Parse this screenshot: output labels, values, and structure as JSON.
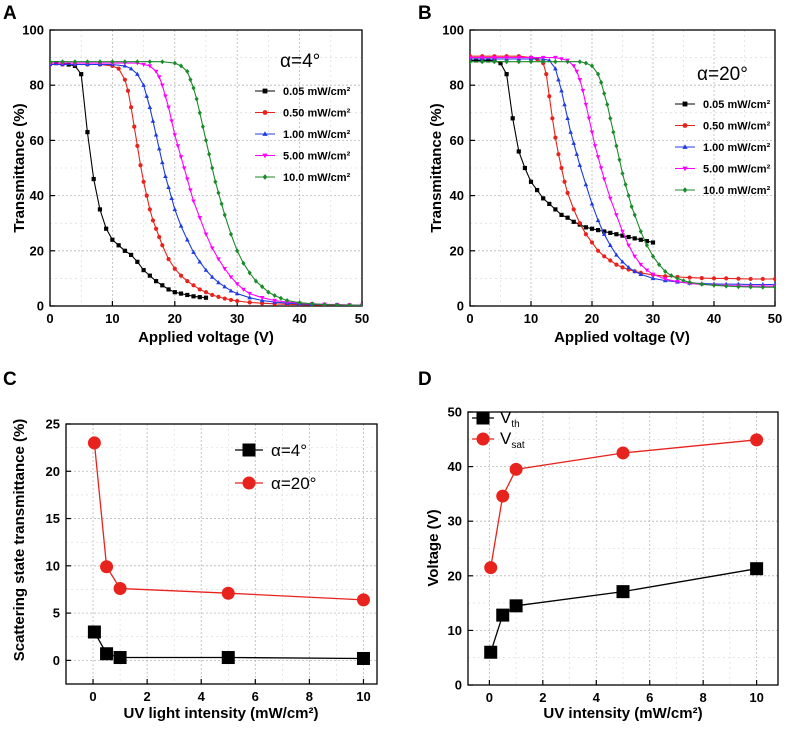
{
  "chart_data": [
    {
      "panel": "A",
      "type": "line",
      "annotation": "α=4°",
      "xlabel": "Applied voltage (V)",
      "ylabel": "Transmittance (%)",
      "xlim": [
        0,
        50
      ],
      "ylim": [
        0,
        100
      ],
      "xticks": [
        0,
        10,
        20,
        30,
        40,
        50
      ],
      "yticks": [
        0,
        20,
        40,
        60,
        80,
        100
      ],
      "grid": true,
      "legend_position": "right",
      "series": [
        {
          "name": "0.05 mW/cm²",
          "color": "#000000",
          "marker": "square",
          "x": [
            0,
            1,
            2,
            3,
            4,
            5,
            6,
            7,
            8,
            9,
            10,
            11,
            12,
            13,
            14,
            15,
            16,
            17,
            18,
            19,
            20,
            21,
            22,
            23,
            24,
            25
          ],
          "y": [
            88,
            88,
            88,
            87.5,
            87,
            84,
            63,
            46,
            35,
            28,
            24,
            22,
            20,
            18.5,
            16,
            13,
            11,
            9,
            7.5,
            6,
            5,
            4.5,
            4,
            3.5,
            3.2,
            3
          ]
        },
        {
          "name": "0.50 mW/cm²",
          "color": "#e8221c",
          "marker": "circle",
          "x": [
            0,
            2,
            4,
            6,
            8,
            10,
            11,
            12,
            12.5,
            13,
            13.5,
            14,
            14.5,
            15,
            15.5,
            16,
            16.5,
            17,
            17.5,
            18,
            19,
            20,
            21,
            22,
            23,
            24,
            25,
            26,
            27,
            28,
            29,
            30,
            32,
            34,
            36,
            38,
            40,
            42,
            44,
            46,
            48,
            50
          ],
          "y": [
            87.5,
            87.5,
            87.5,
            87.5,
            87.5,
            87,
            86,
            82,
            78,
            72,
            65,
            58,
            51,
            45,
            40,
            35,
            31,
            28,
            25,
            22,
            17,
            13.5,
            11,
            9,
            7.5,
            6,
            5,
            4,
            3.3,
            2.7,
            2.2,
            1.8,
            1.3,
            1,
            0.8,
            0.6,
            0.5,
            0.4,
            0.3,
            0.3,
            0.3,
            0.2
          ]
        },
        {
          "name": "1.00 mW/cm²",
          "color": "#1f3ce0",
          "marker": "triangle-up",
          "x": [
            0,
            2,
            4,
            6,
            8,
            10,
            12,
            13,
            14,
            15,
            15.5,
            16,
            16.5,
            17,
            17.5,
            18,
            18.5,
            19,
            19.5,
            20,
            21,
            22,
            23,
            24,
            25,
            26,
            27,
            28,
            29,
            30,
            32,
            34,
            36,
            38,
            40,
            42,
            44,
            46,
            48,
            50
          ],
          "y": [
            87.5,
            87.5,
            87.5,
            87.5,
            87.5,
            87.5,
            87,
            86,
            84,
            80,
            76,
            72,
            67,
            62,
            57,
            52,
            47,
            43,
            39,
            35,
            29,
            24,
            19.5,
            16,
            13,
            10.5,
            8.5,
            7,
            5.5,
            4.5,
            3,
            2,
            1.4,
            1,
            0.8,
            0.6,
            0.5,
            0.4,
            0.3,
            0.3
          ]
        },
        {
          "name": "5.00 mW/cm²",
          "color": "#ff00ff",
          "marker": "triangle-down",
          "x": [
            0,
            2,
            4,
            6,
            8,
            10,
            12,
            14,
            15,
            16,
            17,
            17.5,
            18,
            18.5,
            19,
            19.5,
            20,
            20.5,
            21,
            21.5,
            22,
            22.5,
            23,
            24,
            25,
            26,
            27,
            28,
            29,
            30,
            31,
            32,
            34,
            36,
            38,
            40,
            42,
            44,
            46,
            48,
            50
          ],
          "y": [
            88,
            88,
            88,
            88,
            88,
            88,
            88,
            88,
            87.5,
            87,
            85,
            83,
            80,
            76,
            72,
            67,
            62,
            58,
            54,
            50,
            46,
            42,
            38,
            32,
            26,
            21,
            17,
            13.5,
            10.5,
            8,
            6,
            4.5,
            3,
            2,
            1.4,
            1,
            0.8,
            0.6,
            0.5,
            0.4,
            0.3
          ]
        },
        {
          "name": "10.0 mW/cm²",
          "color": "#1b8a2a",
          "marker": "diamond",
          "x": [
            0,
            2,
            4,
            6,
            8,
            10,
            12,
            14,
            16,
            18,
            20,
            21,
            22,
            22.5,
            23,
            23.5,
            24,
            24.5,
            25,
            25.5,
            26,
            26.5,
            27,
            27.5,
            28,
            29,
            30,
            31,
            32,
            33,
            34,
            35,
            36,
            37,
            38,
            40,
            42,
            44,
            46,
            48,
            50
          ],
          "y": [
            88.5,
            88.5,
            88.5,
            88.5,
            88.5,
            88.5,
            88.5,
            88.5,
            88.5,
            88.5,
            88,
            87,
            85,
            82,
            79,
            75,
            70,
            65,
            60,
            55,
            50,
            45,
            41,
            37,
            33,
            26,
            20,
            15.5,
            12,
            9,
            7,
            5,
            3.8,
            2.8,
            2,
            1.2,
            0.8,
            0.5,
            0.4,
            0.3,
            0.3
          ]
        }
      ]
    },
    {
      "panel": "B",
      "type": "line",
      "annotation": "α=20°",
      "xlabel": "Applied voltage (V)",
      "ylabel": "Transmittance (%)",
      "xlim": [
        0,
        50
      ],
      "ylim": [
        0,
        100
      ],
      "xticks": [
        0,
        10,
        20,
        30,
        40,
        50
      ],
      "yticks": [
        0,
        20,
        40,
        60,
        80,
        100
      ],
      "grid": true,
      "legend_position": "right",
      "series": [
        {
          "name": "0.05 mW/cm²",
          "color": "#000000",
          "marker": "square",
          "x": [
            0,
            1,
            2,
            3,
            4,
            5,
            6,
            7,
            8,
            9,
            10,
            11,
            12,
            13,
            14,
            15,
            16,
            17,
            18,
            19,
            20,
            21,
            22,
            23,
            24,
            25,
            26,
            27,
            28,
            29,
            30
          ],
          "y": [
            89,
            89,
            89,
            89,
            89,
            88,
            84,
            68,
            56,
            50,
            45,
            42,
            39,
            37,
            35,
            33,
            32,
            30.5,
            29.5,
            28.5,
            28,
            27.5,
            27,
            26.5,
            26,
            25.5,
            25,
            24.5,
            24,
            23.5,
            23
          ]
        },
        {
          "name": "0.50 mW/cm²",
          "color": "#e8221c",
          "marker": "circle",
          "x": [
            0,
            2,
            4,
            6,
            8,
            10,
            11,
            12,
            12.5,
            13,
            13.5,
            14,
            14.5,
            15,
            15.5,
            16,
            17,
            18,
            19,
            20,
            21,
            22,
            23,
            24,
            25,
            26,
            27,
            28,
            30,
            32,
            34,
            36,
            38,
            40,
            42,
            44,
            46,
            48,
            50
          ],
          "y": [
            90.5,
            90.5,
            90.5,
            90.5,
            90.5,
            90,
            89.5,
            88,
            84,
            76,
            68,
            61,
            55,
            50,
            45,
            41,
            35,
            30,
            26,
            23,
            20,
            18,
            16.5,
            15,
            14,
            13.2,
            12.6,
            12,
            11.3,
            10.8,
            10.5,
            10.3,
            10.1,
            10,
            10,
            9.9,
            9.8,
            9.8,
            9.8
          ]
        },
        {
          "name": "1.00 mW/cm²",
          "color": "#1f3ce0",
          "marker": "triangle-up",
          "x": [
            0,
            2,
            4,
            6,
            8,
            10,
            12,
            13,
            14,
            14.5,
            15,
            15.5,
            16,
            16.5,
            17,
            17.5,
            18,
            19,
            20,
            21,
            22,
            23,
            24,
            25,
            26,
            27,
            28,
            30,
            32,
            34,
            36,
            38,
            40,
            42,
            44,
            46,
            48,
            50
          ],
          "y": [
            89.5,
            89.5,
            89.5,
            89.5,
            89.5,
            89.5,
            89.5,
            89,
            86,
            82,
            78,
            73,
            68,
            63,
            59,
            55,
            51,
            44,
            37,
            31,
            26,
            22,
            18.5,
            16,
            14,
            12.5,
            11.5,
            10,
            9.2,
            8.7,
            8.3,
            8.1,
            8,
            7.9,
            7.9,
            7.8,
            7.8,
            7.8
          ]
        },
        {
          "name": "5.00 mW/cm²",
          "color": "#ff00ff",
          "marker": "triangle-down",
          "x": [
            0,
            2,
            4,
            6,
            8,
            10,
            12,
            14,
            15,
            16,
            17,
            17.5,
            18,
            18.5,
            19,
            19.5,
            20,
            20.5,
            21,
            21.5,
            22,
            23,
            24,
            25,
            26,
            27,
            28,
            29,
            30,
            32,
            34,
            36,
            38,
            40,
            42,
            44,
            46,
            48,
            50
          ],
          "y": [
            90,
            90,
            90,
            90,
            90,
            90,
            90,
            90,
            89.5,
            89,
            87,
            85,
            82,
            78,
            73,
            68,
            63,
            58,
            54,
            50,
            46,
            39,
            33,
            27,
            22,
            18,
            15,
            13,
            11.5,
            9.8,
            8.8,
            8.2,
            7.8,
            7.6,
            7.4,
            7.3,
            7.2,
            7.2,
            7.2
          ]
        },
        {
          "name": "10.0 mW/cm²",
          "color": "#1b8a2a",
          "marker": "diamond",
          "x": [
            0,
            2,
            4,
            6,
            8,
            10,
            12,
            14,
            16,
            18,
            19,
            20,
            21,
            21.5,
            22,
            22.5,
            23,
            23.5,
            24,
            24.5,
            25,
            25.5,
            26,
            26.5,
            27,
            28,
            29,
            30,
            31,
            32,
            33,
            34,
            35,
            36,
            38,
            40,
            42,
            44,
            46,
            48,
            50
          ],
          "y": [
            88.5,
            88.5,
            88.5,
            88.5,
            88.5,
            88.5,
            88.5,
            88.5,
            88.5,
            88.5,
            88,
            87,
            84,
            81,
            77,
            73,
            68,
            63,
            58,
            53,
            48,
            44,
            40,
            36,
            33,
            27,
            22,
            18,
            15,
            12.5,
            11,
            10,
            9.2,
            8.6,
            7.9,
            7.5,
            7.2,
            7,
            6.9,
            6.8,
            6.8
          ]
        }
      ]
    },
    {
      "panel": "C",
      "type": "line",
      "xlabel": "UV light intensity (mW/cm²)",
      "ylabel": "Scattering state transmittance (%)",
      "xlim": [
        -1,
        10.5
      ],
      "ylim": [
        -2.5,
        25
      ],
      "xticks": [
        0,
        2,
        4,
        6,
        8,
        10
      ],
      "yticks": [
        0,
        5,
        10,
        15,
        20,
        25
      ],
      "grid": true,
      "legend_position": "top-right",
      "series": [
        {
          "name": "α=4°",
          "color": "#000000",
          "marker": "square",
          "x": [
            0.05,
            0.5,
            1,
            5,
            10
          ],
          "y": [
            3,
            0.7,
            0.3,
            0.3,
            0.2
          ]
        },
        {
          "name": "α=20°",
          "color": "#e8221c",
          "marker": "circle",
          "x": [
            0.05,
            0.5,
            1,
            5,
            10
          ],
          "y": [
            23,
            9.9,
            7.6,
            7.1,
            6.4
          ]
        }
      ]
    },
    {
      "panel": "D",
      "type": "line",
      "xlabel": "UV intensity (mW/cm²)",
      "ylabel": "Voltage (V)",
      "xlim": [
        -0.8,
        10.8
      ],
      "ylim": [
        0,
        50
      ],
      "xticks": [
        0,
        2,
        4,
        6,
        8,
        10
      ],
      "yticks": [
        0,
        10,
        20,
        30,
        40,
        50
      ],
      "grid": true,
      "legend_position": "top-left",
      "series": [
        {
          "name": "V",
          "sub": "th",
          "color": "#000000",
          "marker": "square",
          "x": [
            0.05,
            0.5,
            1,
            5,
            10
          ],
          "y": [
            6,
            12.8,
            14.5,
            17.1,
            21.3
          ]
        },
        {
          "name": "V",
          "sub": "sat",
          "color": "#e8221c",
          "marker": "circle",
          "x": [
            0.05,
            0.5,
            1,
            5,
            10
          ],
          "y": [
            21.5,
            34.6,
            39.5,
            42.5,
            44.9
          ]
        }
      ]
    }
  ],
  "panel_letters": [
    "A",
    "B",
    "C",
    "D"
  ]
}
